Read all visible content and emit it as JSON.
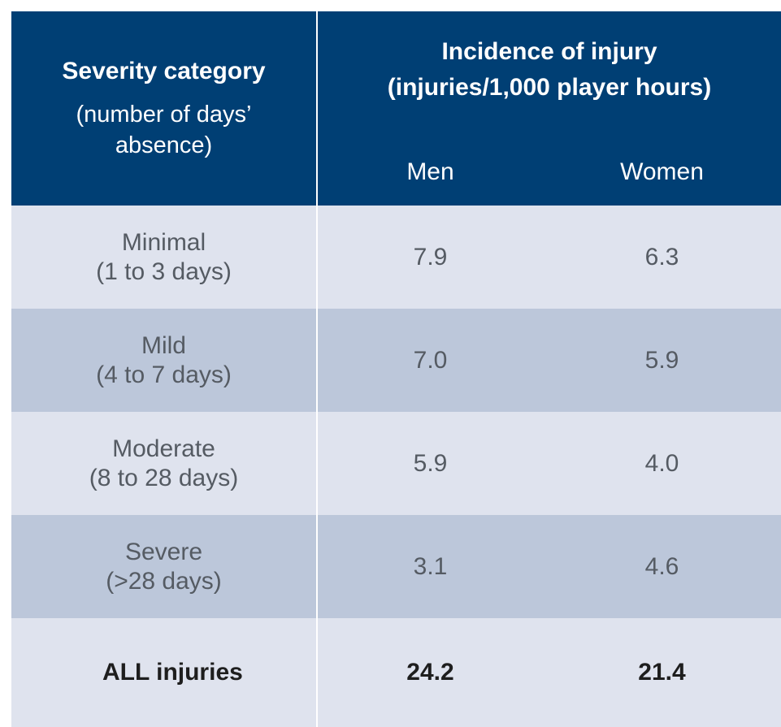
{
  "table": {
    "header": {
      "severity_title": "Severity category",
      "severity_sub_1": "(number of days’",
      "severity_sub_2": "absence)",
      "incidence_title": "Incidence of injury",
      "incidence_sub": "(injuries/1,000 player hours)",
      "col_men": "Men",
      "col_women": "Women"
    },
    "rows": [
      {
        "category": "Minimal",
        "range": "(1 to 3 days)",
        "men": "7.9",
        "women": "6.3"
      },
      {
        "category": "Mild",
        "range": "(4 to 7 days)",
        "men": "7.0",
        "women": "5.9"
      },
      {
        "category": "Moderate",
        "range": "(8 to 28 days)",
        "men": "5.9",
        "women": "4.0"
      },
      {
        "category": "Severe",
        "range": "(>28 days)",
        "men": "3.1",
        "women": "4.6"
      }
    ],
    "total": {
      "label": "ALL injuries",
      "men": "24.2",
      "women": "21.4"
    },
    "colors": {
      "header_bg": "#003f74",
      "row_light": "#dfe3ee",
      "row_dark": "#bcc7da"
    }
  }
}
